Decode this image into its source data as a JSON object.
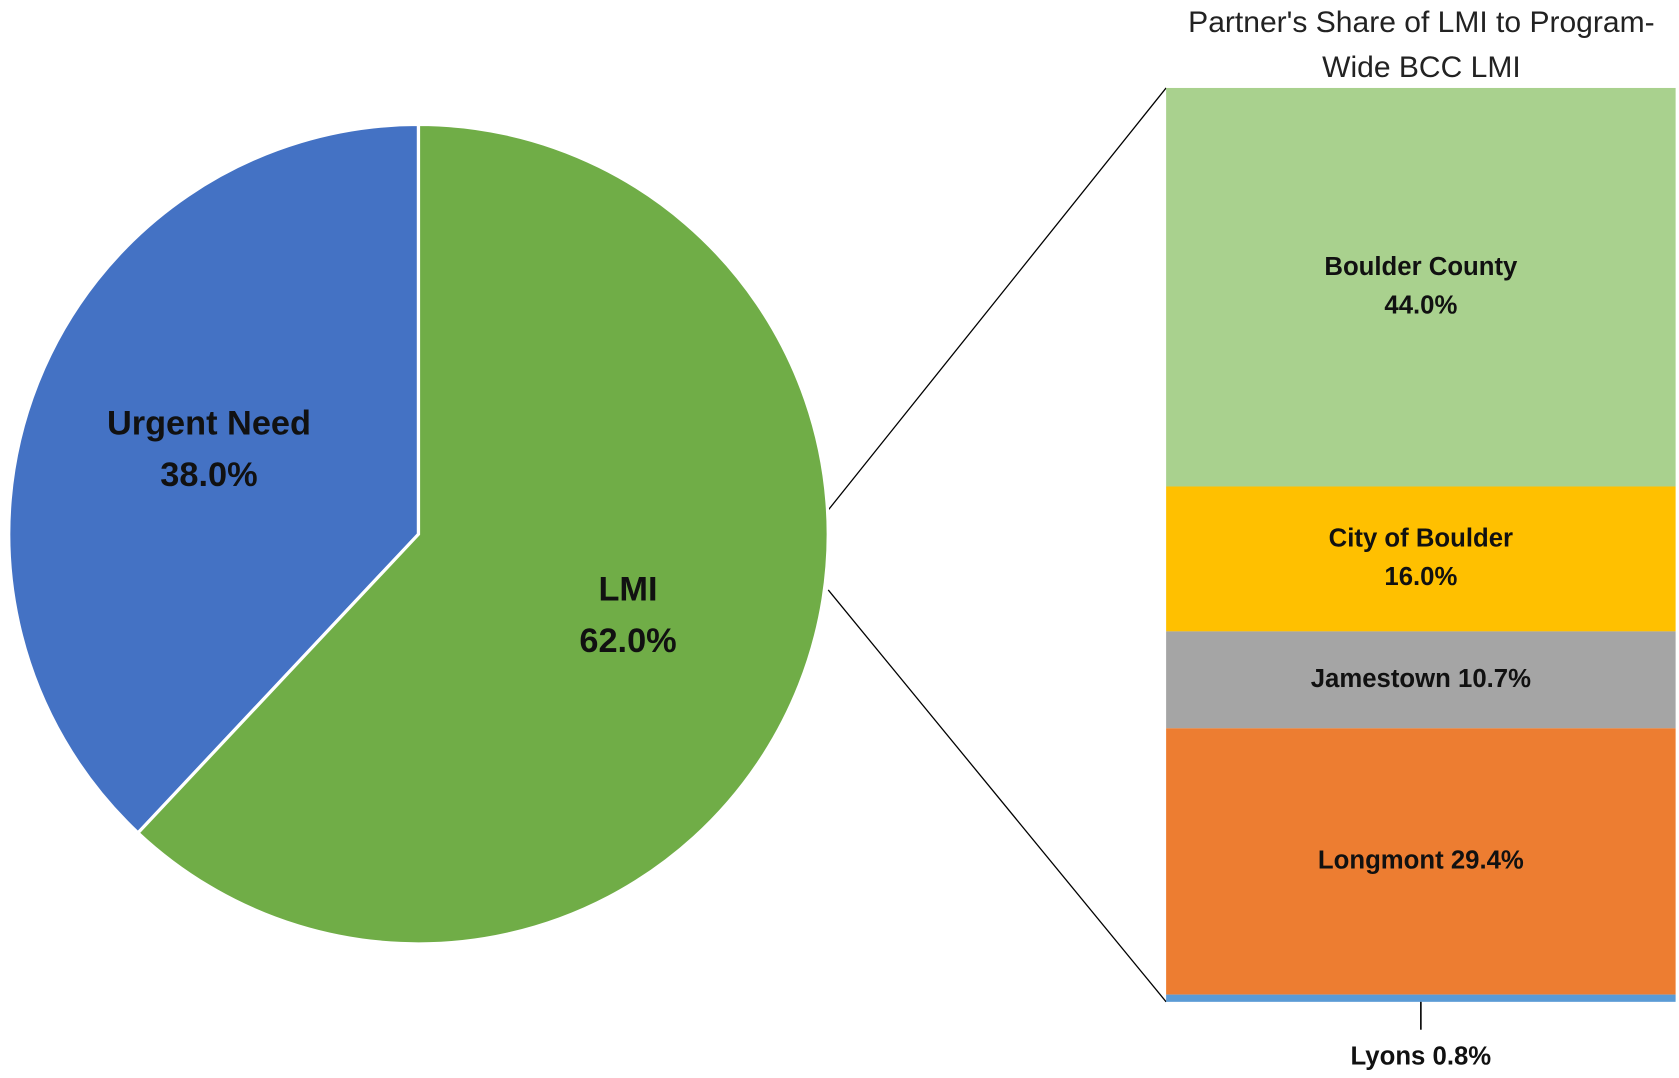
{
  "chart_data": [
    {
      "type": "pie",
      "categories": [
        "Urgent Need",
        "LMI"
      ],
      "values": [
        38,
        62
      ],
      "value_labels": [
        "38.0%",
        "62.0%"
      ],
      "colors": [
        "#4472c4",
        "#70ad47"
      ]
    },
    {
      "type": "stacked-bar",
      "title": "Partner's Share of LMI to Program-Wide BCC LMI",
      "categories": [
        "Boulder County",
        "City of Boulder",
        "Jamestown",
        "Longmont",
        "Lyons"
      ],
      "values": [
        44.0,
        16.0,
        10.7,
        29.4,
        0.8
      ],
      "value_labels": [
        "44.0%",
        "16.0%",
        "10.7%",
        "29.4%",
        "0.8%"
      ],
      "colors": [
        "#a9d18e",
        "#ffc000",
        "#a5a5a5",
        "#ed7d31",
        "#5b9bd5"
      ]
    }
  ]
}
